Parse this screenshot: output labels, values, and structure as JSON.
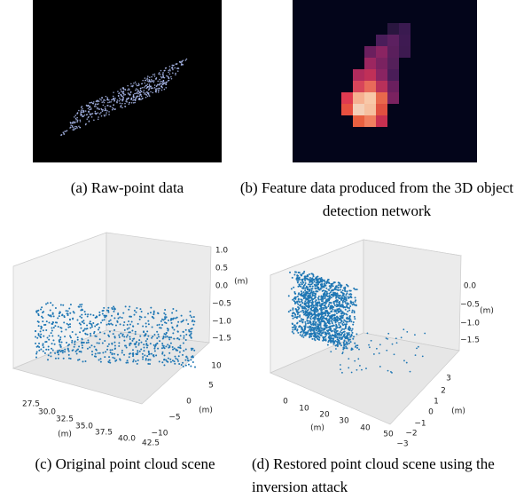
{
  "panels": [
    {
      "caption": "(a) Raw-point data"
    },
    {
      "caption": "(b) Feature data produced from the 3D object detection network"
    },
    {
      "caption": "(c) Original point cloud scene",
      "axes": {
        "x_label": "(m)",
        "xticks": [
          "27.5",
          "30.0",
          "32.5",
          "35.0",
          "37.5",
          "40.0",
          "42.5"
        ],
        "y_label": "(m)",
        "yticks": [
          "10",
          "5",
          "0",
          "−5",
          "−10"
        ],
        "z_label": "(m)",
        "zticks": [
          "1.0",
          "0.5",
          "0.0",
          "−0.5",
          "−1.0",
          "−1.5"
        ]
      }
    },
    {
      "caption": "(d) Restored point cloud scene using the inversion attack",
      "axes": {
        "x_label": "(m)",
        "xticks": [
          "0",
          "10",
          "20",
          "30",
          "40",
          "50"
        ],
        "y_label": "(m)",
        "yticks": [
          "3",
          "2",
          "1",
          "0",
          "−1",
          "−2",
          "−3"
        ],
        "z_label": "(m)",
        "zticks": [
          "0.0",
          "−0.5",
          "−1.0",
          "−1.5"
        ]
      }
    }
  ]
}
